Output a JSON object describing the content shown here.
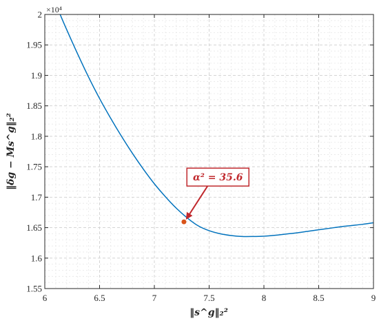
{
  "chart_data": {
    "type": "line",
    "xlabel": "‖s^g‖₂²",
    "ylabel": "‖δg − Ms^g‖₂²",
    "y_multiplier_label": "×10⁴",
    "xlim": [
      6,
      9
    ],
    "ylim": [
      1.55,
      2.0
    ],
    "grid": true,
    "minor_grid": true,
    "x_ticks": [
      "6",
      "6.5",
      "7",
      "7.5",
      "8",
      "8.5",
      "9"
    ],
    "y_ticks": [
      "1.55",
      "1.6",
      "1.65",
      "1.7",
      "1.75",
      "1.8",
      "1.85",
      "1.9",
      "1.95",
      "2"
    ],
    "series": [
      {
        "color": "#0072BD",
        "x": [
          6.14,
          6.2,
          6.3,
          6.4,
          6.5,
          6.6,
          6.7,
          6.8,
          6.9,
          7.0,
          7.1,
          7.2,
          7.3,
          7.4,
          7.5,
          7.6,
          7.7,
          7.8,
          7.9,
          8.0,
          8.1,
          8.2,
          8.3,
          8.4,
          8.5,
          8.6,
          8.7,
          8.8,
          8.9,
          9.0
        ],
        "y": [
          2.0,
          1.975,
          1.935,
          1.897,
          1.862,
          1.83,
          1.8,
          1.772,
          1.746,
          1.722,
          1.701,
          1.682,
          1.666,
          1.653,
          1.645,
          1.64,
          1.637,
          1.6355,
          1.6355,
          1.636,
          1.6375,
          1.6395,
          1.6415,
          1.644,
          1.6465,
          1.649,
          1.6515,
          1.6535,
          1.6555,
          1.658
        ]
      }
    ],
    "highlight_point": {
      "x": 7.27,
      "y": 1.6595,
      "color": "#D95319"
    },
    "annotation": {
      "text": "α² = 35.6",
      "color": "#C0282D",
      "points_to": {
        "x": 7.27,
        "y": 1.6595
      },
      "text_anchor": {
        "x": 7.58,
        "y": 1.733
      }
    }
  }
}
